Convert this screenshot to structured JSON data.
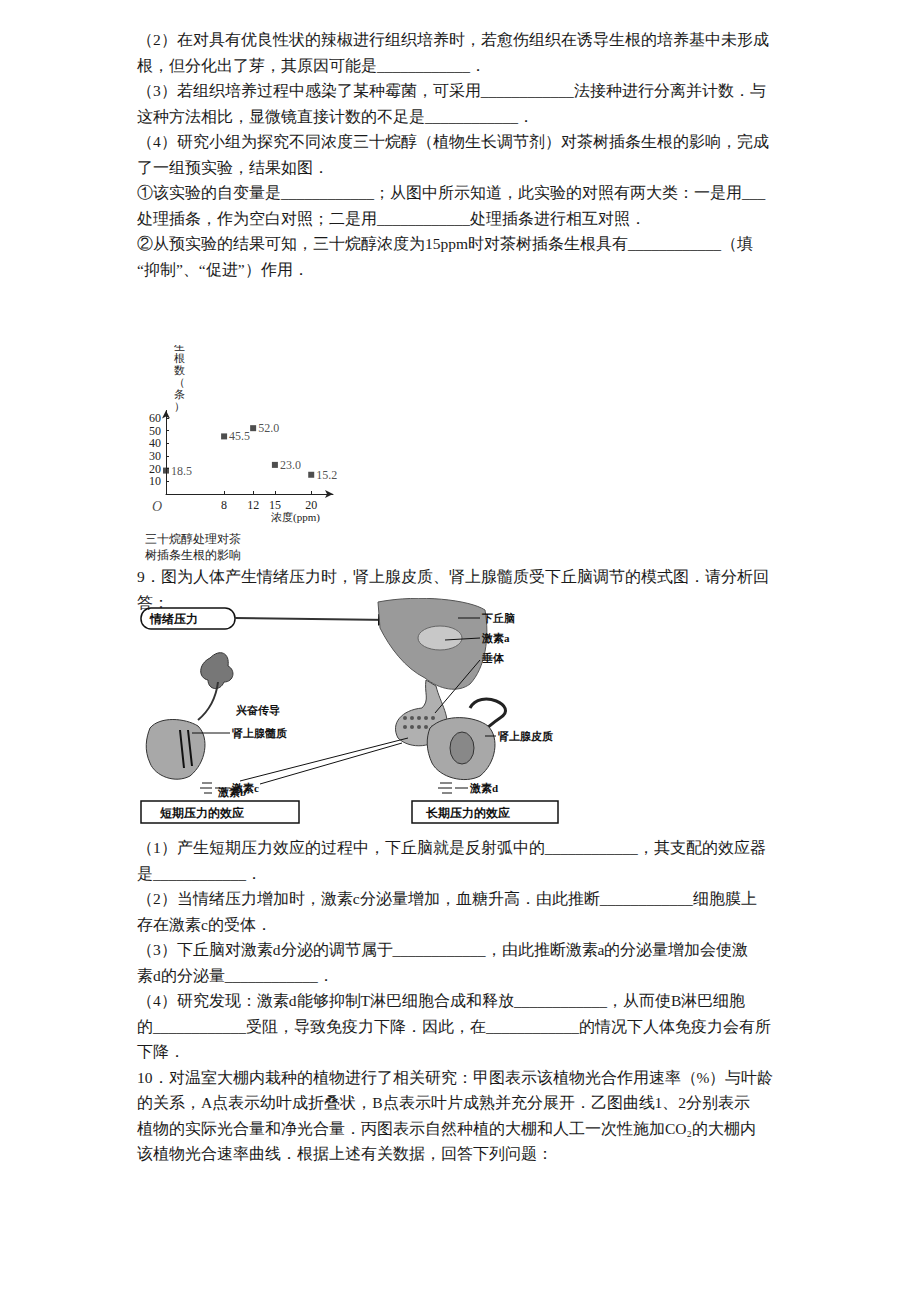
{
  "document": {
    "section1": [
      "（2）在对具有优良性状的辣椒进行组织培养时，若愈伤组织在诱导生根的培养基中未形成",
      "根，但分化出了芽，其原因可能是____________．",
      "（3）若组织培养过程中感染了某种霉菌，可采用____________法接种进行分离并计数．与",
      "这种方法相比，显微镜直接计数的不足是____________．",
      "（4）研究小组为探究不同浓度三十烷醇（植物生长调节剂）对茶树插条生根的影响，完成",
      "了一组预实验，结果如图．",
      "①该实验的自变量是____________；从图中所示知道，此实验的对照有两大类：一是用___",
      "处理插条，作为空白对照；二是用____________处理插条进行相互对照．",
      "②从预实验的结果可知，三十烷醇浓度为15ppm时对茶树插条生根具有____________（填",
      "“抑制”、“促进”）作用．"
    ],
    "section2": [
      "9．图为人体产生情绪压力时，肾上腺皮质、肾上腺髓质受下丘脑调节的模式图．请分析回",
      "答："
    ],
    "diagram": {
      "stress": "情绪压力",
      "hypothalamus": "下丘脑",
      "hormone_a": "激素a",
      "pituitary": "垂体",
      "conduction": "兴奋传导",
      "medulla": "肾上腺髓质",
      "hormone_b": "激素b",
      "cortex": "肾上腺皮质",
      "hormone_c": "激素c",
      "hormone_d": "激素d",
      "short_effect": "短期压力的效应",
      "long_effect": "长期压力的效应"
    },
    "section3": [
      "（1）产生短期压力效应的过程中，下丘脑就是反射弧中的____________，其支配的效应器",
      "是____________．",
      "（2）当情绪压力增加时，激素c分泌量增加，血糖升高．由此推断____________细胞膜上",
      "存在激素c的受体．",
      "（3）下丘脑对激素d分泌的调节属于____________，由此推断激素a的分泌量增加会使激",
      "素d的分泌量____________．",
      "（4）研究发现：激素d能够抑制T淋巴细胞合成和释放____________，从而使B淋巴细胞",
      "的____________受阻，导致免疫力下降．因此，在____________的情况下人体免疫力会有所",
      "下降．",
      "10．对温室大棚内栽种的植物进行了相关研究：甲图表示该植物光合作用速率（%）与叶龄",
      "的关系，A点表示幼叶成折叠状，B点表示叶片成熟并充分展开．乙图曲线1、2分别表示",
      "植物的实际光合量和净光合量．丙图表示自然种植的大棚和人工一次性施加CO₂的大棚内",
      "该植物光合速率曲线．根据上述有关数据，回答下列问题："
    ]
  },
  "chart_data": {
    "type": "scatter",
    "title": "三十烷醇处理对茶\n树插条生根的影响",
    "x_label": "浓度(ppm)",
    "y_label": "生根数（条）",
    "x": [
      0,
      8,
      12,
      15,
      20
    ],
    "values": [
      18.5,
      45.5,
      52.0,
      23.0,
      15.2
    ],
    "value_labels": [
      "18.5",
      "45.5",
      "52.0",
      "23.0",
      "15.2"
    ],
    "data_labels": true,
    "xlim": [
      0,
      23
    ],
    "ylim": [
      0,
      66
    ],
    "xticks": [
      8,
      12,
      15,
      20
    ],
    "yticks": [
      10,
      20,
      30,
      40,
      50,
      60
    ],
    "annotations": [
      {
        "text": "O",
        "x": 0,
        "y": 0
      }
    ],
    "marker": "square",
    "color": "#222222",
    "grid": false
  }
}
